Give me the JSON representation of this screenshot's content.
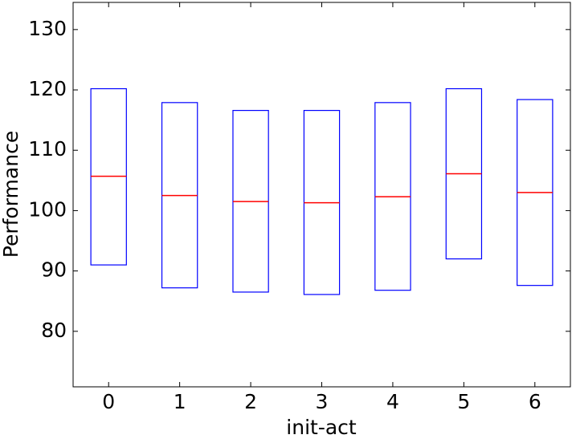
{
  "chart_data": {
    "type": "box",
    "xlabel": "init-act",
    "ylabel": "Performance",
    "categories": [
      "0",
      "1",
      "2",
      "3",
      "4",
      "5",
      "6"
    ],
    "q1": [
      91.0,
      87.2,
      86.5,
      86.1,
      86.8,
      92.0,
      87.6
    ],
    "median": [
      105.7,
      102.5,
      101.5,
      101.3,
      102.3,
      106.1,
      103.0
    ],
    "q3": [
      120.2,
      117.9,
      116.6,
      116.6,
      117.9,
      120.2,
      118.4
    ],
    "box_color": "#0000ff",
    "median_color": "#ff0000",
    "ylim": [
      70.8,
      134.5
    ],
    "yticks": [
      80,
      90,
      100,
      110,
      120,
      130
    ],
    "grid": false
  }
}
